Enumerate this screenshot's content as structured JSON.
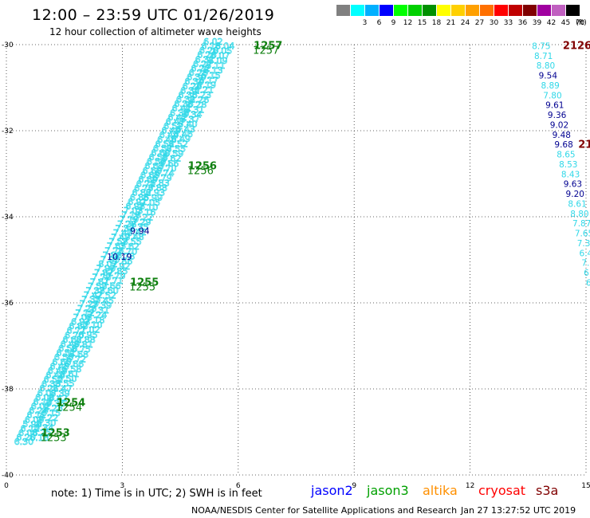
{
  "header": {
    "title": "12:00 – 23:59 UTC 01/26/2019",
    "subtitle": "12 hour collection of altimeter wave heights"
  },
  "legend": {
    "unit": "(ft)",
    "bins": [
      {
        "label": "",
        "color": "#808080"
      },
      {
        "label": "3",
        "color": "#00ffff"
      },
      {
        "label": "6",
        "color": "#00b0ff"
      },
      {
        "label": "9",
        "color": "#0000ff"
      },
      {
        "label": "12",
        "color": "#00ff00"
      },
      {
        "label": "15",
        "color": "#00d000"
      },
      {
        "label": "18",
        "color": "#009000"
      },
      {
        "label": "21",
        "color": "#ffff00"
      },
      {
        "label": "24",
        "color": "#ffd000"
      },
      {
        "label": "27",
        "color": "#ffa000"
      },
      {
        "label": "30",
        "color": "#ff7000"
      },
      {
        "label": "33",
        "color": "#ff0000"
      },
      {
        "label": "36",
        "color": "#c00000"
      },
      {
        "label": "39",
        "color": "#800000"
      },
      {
        "label": "42",
        "color": "#a000a0"
      },
      {
        "label": "45",
        "color": "#c060c0"
      },
      {
        "label": "70",
        "color": "#000000"
      }
    ]
  },
  "axes": {
    "x": {
      "range": [
        0,
        15
      ],
      "ticks": [
        "0",
        "3",
        "6",
        "9",
        "12",
        "15"
      ]
    },
    "y": {
      "range": [
        -30,
        -40
      ],
      "ticks": [
        "-30",
        "-32",
        "-34",
        "-36",
        "-38",
        "-40"
      ]
    },
    "grid": "dotted"
  },
  "colors": {
    "cyan": "#30d8e8",
    "navy": "#000090",
    "green": "#108010",
    "maroon": "#800000"
  },
  "map": {
    "track_a": {
      "color": "cyan",
      "start": [
        0.2,
        -39.3
      ],
      "end": [
        5.1,
        -30.0
      ],
      "labels": [
        "6.30",
        "6.20",
        "6.08",
        "6.12",
        "5.98",
        "6.05",
        "6.11",
        "6.24",
        "6.02",
        "6.13",
        "6.08",
        "6.07",
        "6.21",
        "6.33",
        "6.52",
        "6.48",
        "6.43",
        "6.45",
        "6.60",
        "6.50",
        "6.51",
        "6.58",
        "6.49",
        "6.62",
        "6.70",
        "6.71",
        "6.80",
        "6.93",
        "7.05",
        "7.12",
        "7.20",
        "7.29",
        "7.35",
        "7.42",
        "7.38",
        "7.50",
        "7.61",
        "7.70",
        "7.82",
        "7.90",
        "8.02",
        "7.95",
        "7.88",
        "7.76",
        "7.65",
        "7.58",
        "7.49",
        "7.40",
        "7.33",
        "7.28",
        "7.19",
        "7.10",
        "7.03",
        "6.98",
        "6.91",
        "6.85",
        "6.82",
        "6.77",
        "6.71",
        "6.69",
        "6.65",
        "6.60",
        "6.63",
        "6.59",
        "6.55",
        "6.60",
        "6.57",
        "6.51",
        "6.48",
        "6.44",
        "6.49",
        "6.52",
        "6.47",
        "6.42",
        "6.38",
        "6.41",
        "6.36",
        "6.32",
        "6.35",
        "6.31",
        "6.28",
        "6.34",
        "6.30",
        "6.25",
        "6.22",
        "6.27",
        "6.31",
        "6.26",
        "6.20",
        "6.18",
        "6.02"
      ]
    },
    "track_b": {
      "color": "cyan",
      "start": [
        0.6,
        -39.2
      ],
      "end": [
        5.4,
        -30.1
      ],
      "labels": [
        "6.18",
        "6.25",
        "6.34",
        "6.30",
        "6.22",
        "6.15",
        "6.28",
        "6.36",
        "6.42",
        "6.39",
        "6.47",
        "6.55",
        "6.50",
        "6.61",
        "6.58",
        "6.66",
        "6.72",
        "6.68",
        "6.75",
        "6.81",
        "6.88",
        "6.95",
        "7.02",
        "7.10",
        "7.18",
        "7.24",
        "7.31",
        "7.39",
        "7.45",
        "7.52",
        "7.60",
        "7.66",
        "7.71",
        "7.79",
        "7.85",
        "7.92",
        "7.86",
        "7.78",
        "7.70",
        "7.62",
        "7.55",
        "7.48",
        "7.41",
        "7.35",
        "7.29",
        "7.22",
        "7.16",
        "7.10",
        "7.05",
        "6.99",
        "6.93",
        "6.88",
        "6.83",
        "6.79",
        "6.74",
        "6.70",
        "6.66",
        "6.62",
        "6.59",
        "6.55",
        "6.52",
        "6.49",
        "6.46",
        "6.43",
        "6.40",
        "6.37",
        "6.34",
        "6.31",
        "6.28",
        "6.26",
        "6.23",
        "6.21",
        "6.19",
        "6.17",
        "6.15",
        "6.13",
        "6.11",
        "6.09",
        "6.07",
        "6.05",
        "6.04"
      ]
    },
    "points": [
      {
        "text": "9.94",
        "lon": 3.2,
        "lat": -34.4,
        "color": "navy"
      },
      {
        "text": "10.19",
        "lon": 2.6,
        "lat": -35.0,
        "color": "navy"
      },
      {
        "text": "1257",
        "lon": 6.4,
        "lat": -30.1,
        "color": "green"
      },
      {
        "text": "1256",
        "lon": 4.7,
        "lat": -32.9,
        "color": "green"
      },
      {
        "text": "1255",
        "lon": 3.2,
        "lat": -35.6,
        "color": "green"
      },
      {
        "text": "1254",
        "lon": 1.3,
        "lat": -38.4,
        "color": "green"
      },
      {
        "text": "1253",
        "lon": 0.9,
        "lat": -39.1,
        "color": "green"
      },
      {
        "text": "2126",
        "lon": 14.4,
        "lat": -30.1,
        "color": "maroon"
      },
      {
        "text": "21",
        "lon": 14.8,
        "lat": -32.4,
        "color": "maroon"
      }
    ],
    "right_track": {
      "labels": [
        {
          "text": "8.75",
          "color": "cyan"
        },
        {
          "text": "8.71",
          "color": "cyan"
        },
        {
          "text": "8.80",
          "color": "cyan"
        },
        {
          "text": "9.54",
          "color": "navy"
        },
        {
          "text": "8.89",
          "color": "cyan"
        },
        {
          "text": "7.80",
          "color": "cyan"
        },
        {
          "text": "9.61",
          "color": "navy"
        },
        {
          "text": "9.36",
          "color": "navy"
        },
        {
          "text": "9.02",
          "color": "navy"
        },
        {
          "text": "9.48",
          "color": "navy"
        },
        {
          "text": "9.68",
          "color": "navy"
        },
        {
          "text": "8.65",
          "color": "cyan"
        },
        {
          "text": "8.53",
          "color": "cyan"
        },
        {
          "text": "8.43",
          "color": "cyan"
        },
        {
          "text": "9.63",
          "color": "navy"
        },
        {
          "text": "9.20",
          "color": "navy"
        },
        {
          "text": "8.61",
          "color": "cyan"
        },
        {
          "text": "8.80",
          "color": "cyan"
        },
        {
          "text": "7.87",
          "color": "cyan"
        },
        {
          "text": "7.65",
          "color": "cyan"
        },
        {
          "text": "7.3",
          "color": "cyan"
        },
        {
          "text": "6.4",
          "color": "cyan"
        },
        {
          "text": "7.",
          "color": "cyan"
        },
        {
          "text": "6.",
          "color": "cyan"
        },
        {
          "text": "6",
          "color": "cyan"
        }
      ]
    }
  },
  "footer": {
    "note": "note:  1) Time is in UTC;  2) SWH is in feet",
    "satellites": [
      {
        "name": "jason2",
        "color": "#0000ff"
      },
      {
        "name": "jason3",
        "color": "#00a000"
      },
      {
        "name": "altika",
        "color": "#ff9000"
      },
      {
        "name": "cryosat",
        "color": "#ff0000"
      },
      {
        "name": "s3a",
        "color": "#800000"
      }
    ],
    "credit": "NOAA/NESDIS Center for Satellite Applications and Research",
    "timestamp": "Jan 27 13:27:52 UTC 2019"
  }
}
